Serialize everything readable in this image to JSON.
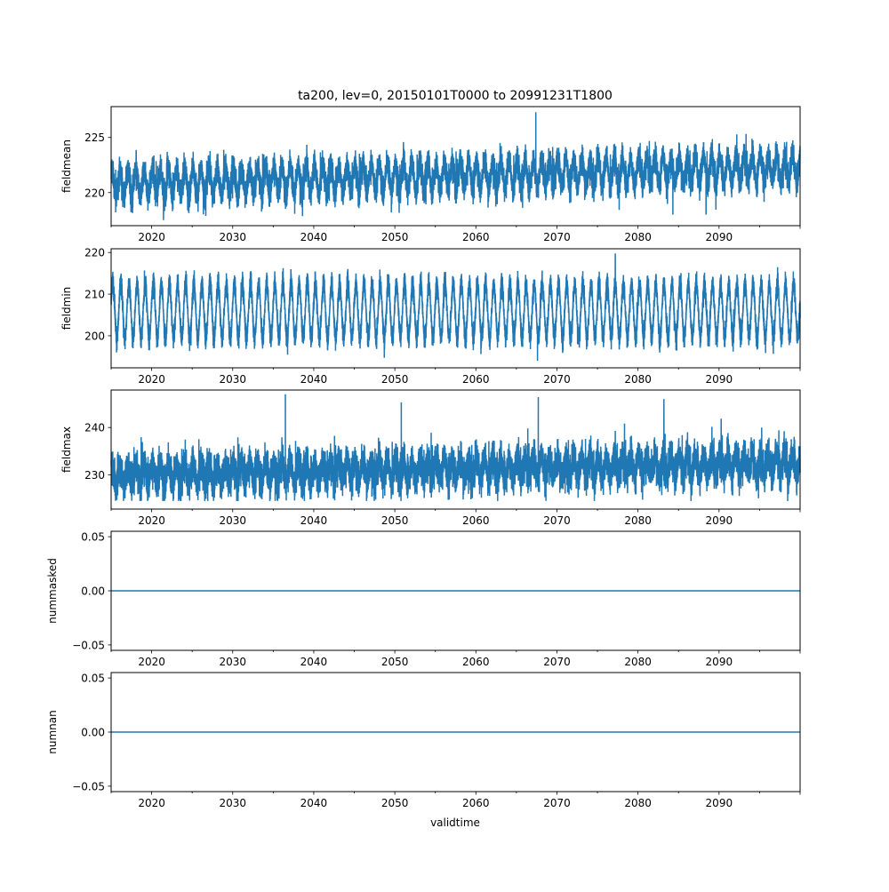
{
  "chart_data": {
    "type": "line",
    "title": "ta200, lev=0, 20150101T0000 to 20991231T1800",
    "xlabel": "validtime",
    "xlim": [
      2015.0,
      2100.0
    ],
    "x_ticks": [
      "2020",
      "2030",
      "2040",
      "2050",
      "2060",
      "2070",
      "2080",
      "2090"
    ],
    "x_tick_values": [
      2020,
      2030,
      2040,
      2050,
      2060,
      2070,
      2080,
      2090
    ],
    "line_color": "#1f77b4",
    "panels": [
      {
        "ylabel": "fieldmean",
        "ylim": [
          217.0,
          227.8
        ],
        "y_ticks": [
          "220",
          "225"
        ],
        "y_tick_values": [
          220,
          225
        ],
        "series": {
          "start_mean": 220.8,
          "end_mean": 222.3,
          "seasonal_amplitude": 1.2,
          "noise": 1.1,
          "spread_min": 218.0,
          "spread_max": 225.5,
          "peaks": [
            [
              2067.4,
              227.3
            ],
            [
              2084.3,
              218.0
            ],
            [
              2088.4,
              218.0
            ]
          ]
        }
      },
      {
        "ylabel": "fieldmin",
        "ylim": [
          192.3,
          220.9
        ],
        "y_ticks": [
          "200",
          "210",
          "220"
        ],
        "y_tick_values": [
          200,
          210,
          220
        ],
        "series": {
          "start_mean": 206.0,
          "end_mean": 206.0,
          "seasonal_amplitude": 6.5,
          "noise": 1.6,
          "spread_min": 195.0,
          "spread_max": 219.0,
          "peaks": [
            [
              2077.2,
              219.8
            ],
            [
              2067.6,
              194.0
            ]
          ]
        }
      },
      {
        "ylabel": "fieldmax",
        "ylim": [
          222.8,
          247.9
        ],
        "y_ticks": [
          "230",
          "240"
        ],
        "y_tick_values": [
          230,
          240
        ],
        "series": {
          "start_mean": 230.0,
          "end_mean": 232.5,
          "seasonal_amplitude": 2.0,
          "noise": 3.2,
          "spread_min": 225.0,
          "spread_max": 242.0,
          "peaks": [
            [
              2036.5,
              247.0
            ],
            [
              2050.8,
              245.3
            ],
            [
              2067.7,
              246.4
            ],
            [
              2083.2,
              246.0
            ]
          ]
        }
      },
      {
        "ylabel": "nummasked",
        "ylim": [
          -0.055,
          0.055
        ],
        "y_ticks": [
          "−0.05",
          "0.00",
          "0.05"
        ],
        "y_tick_values": [
          -0.05,
          0,
          0.05
        ],
        "series": {
          "constant": 0
        }
      },
      {
        "ylabel": "numnan",
        "ylim": [
          -0.055,
          0.055
        ],
        "y_ticks": [
          "−0.05",
          "0.00",
          "0.05"
        ],
        "y_tick_values": [
          -0.05,
          0,
          0.05
        ],
        "series": {
          "constant": 0
        }
      }
    ]
  }
}
